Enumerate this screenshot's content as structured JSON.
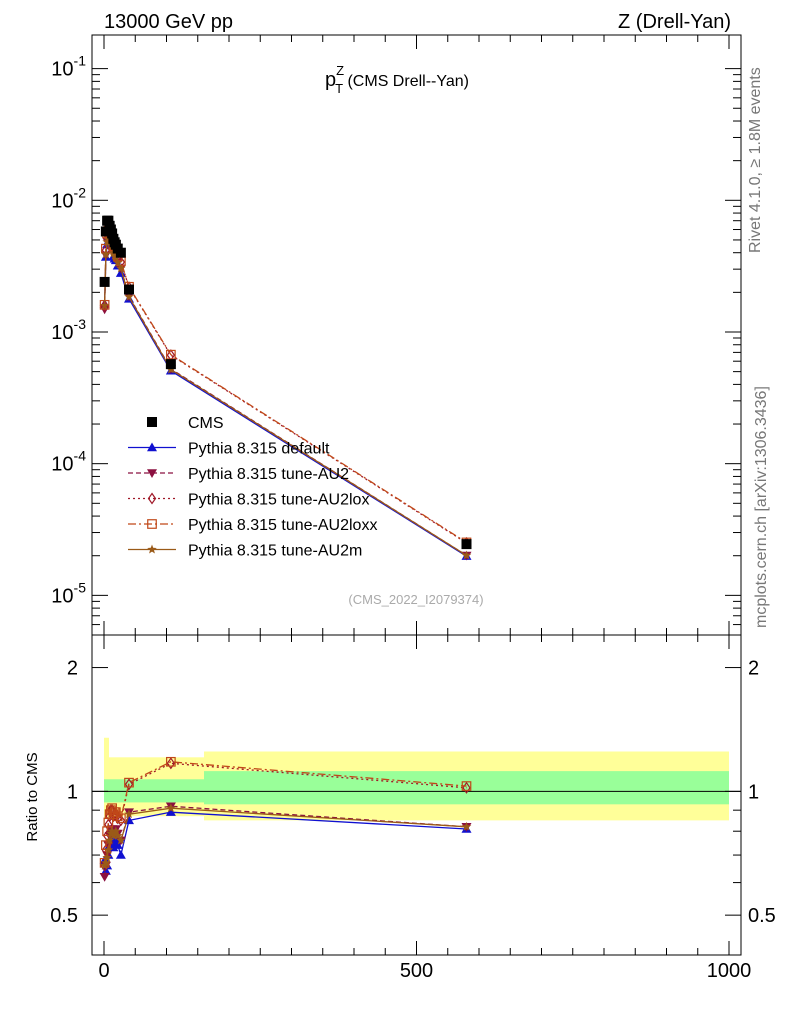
{
  "header": {
    "left": "13000 GeV pp",
    "right": "Z (Drell-Yan)"
  },
  "side_labels": {
    "rivet": "Rivet 4.1.0, ≥ 1.8M events",
    "mcplots": "mcplots.cern.ch [arXiv:1306.3436]"
  },
  "plot_title": {
    "main": "p",
    "sup": "Z",
    "sub": "T",
    "rest": " (CMS Drell--Yan)"
  },
  "analysis_id": "(CMS_2022_I2079374)",
  "colors": {
    "data": "#000000",
    "default": "#1010d0",
    "au2": "#8b1040",
    "au2lox": "#a01828",
    "au2loxx": "#c04818",
    "au2m": "#9a5a18",
    "band_inner": "#99ff99",
    "band_outer": "#ffff99"
  },
  "chart_data": {
    "type": "line",
    "x_axis": {
      "range": [
        -20,
        1000
      ],
      "ticks": [
        0,
        500,
        1000
      ],
      "tick_labels": [
        "0",
        "500",
        "1000"
      ]
    },
    "main_panel": {
      "y_scale": "log",
      "y_range": [
        5e-06,
        0.18
      ],
      "y_ticks": [
        {
          "exp": "-1",
          "value": 0.1
        },
        {
          "exp": "-2",
          "value": 0.01
        },
        {
          "exp": "-3",
          "value": 0.001
        },
        {
          "exp": "-4",
          "value": 0.0001
        },
        {
          "exp": "-5",
          "value": 1e-05
        }
      ],
      "y_tick_base": "10"
    },
    "ratio_panel": {
      "ylabel": "Ratio to CMS",
      "y_scale": "log",
      "y_range": [
        0.4,
        2.4
      ],
      "y_ticks": [
        0.5,
        1,
        2
      ],
      "y_tick_labels": [
        "0.5",
        "1",
        "2"
      ],
      "band_inner": [
        {
          "x0": 0,
          "x1": 160,
          "lo": 0.94,
          "hi": 1.07
        },
        {
          "x0": 160,
          "x1": 1000,
          "lo": 0.93,
          "hi": 1.12
        }
      ],
      "band_outer": [
        {
          "x0": 0,
          "x1": 8,
          "lo": 0.86,
          "hi": 1.35
        },
        {
          "x0": 8,
          "x1": 160,
          "lo": 0.87,
          "hi": 1.21
        },
        {
          "x0": 160,
          "x1": 1000,
          "lo": 0.85,
          "hi": 1.25
        }
      ]
    },
    "legend": [
      "CMS",
      "Pythia 8.315 default",
      "Pythia 8.315 tune-AU2",
      "Pythia 8.315 tune-AU2lox",
      "Pythia 8.315 tune-AU2loxx",
      "Pythia 8.315 tune-AU2m"
    ],
    "data_points": {
      "x": [
        1,
        3,
        5,
        7,
        9,
        11,
        13,
        15,
        17,
        19,
        22,
        27,
        40,
        107,
        580
      ],
      "y": [
        0.0024,
        0.0058,
        0.007,
        0.007,
        0.0064,
        0.006,
        0.0056,
        0.0051,
        0.0048,
        0.0046,
        0.0043,
        0.004,
        0.0021,
        0.00057,
        2.45e-05
      ]
    },
    "series": [
      {
        "name": "Pythia 8.315 default",
        "key": "default",
        "marker": "triangle-up",
        "dash": "",
        "ratio": [
          0.68,
          0.64,
          0.66,
          0.7,
          0.74,
          0.76,
          0.76,
          0.73,
          0.75,
          0.76,
          0.74,
          0.7,
          0.85,
          0.89,
          0.81
        ]
      },
      {
        "name": "Pythia 8.315 tune-AU2",
        "key": "au2",
        "marker": "triangle-down",
        "dash": "5,3",
        "ratio": [
          0.62,
          0.66,
          0.7,
          0.74,
          0.78,
          0.8,
          0.81,
          0.79,
          0.8,
          0.81,
          0.79,
          0.76,
          0.89,
          0.92,
          0.82
        ]
      },
      {
        "name": "Pythia 8.315 tune-AU2lox",
        "key": "au2lox",
        "marker": "diamond",
        "dash": "2,3",
        "ratio": [
          0.66,
          0.72,
          0.78,
          0.83,
          0.87,
          0.9,
          0.9,
          0.87,
          0.88,
          0.88,
          0.86,
          0.85,
          1.04,
          1.17,
          1.02
        ]
      },
      {
        "name": "Pythia 8.315 tune-AU2loxx",
        "key": "au2loxx",
        "marker": "square-open",
        "dash": "8,3,2,3",
        "ratio": [
          0.67,
          0.74,
          0.8,
          0.84,
          0.88,
          0.9,
          0.91,
          0.88,
          0.89,
          0.89,
          0.87,
          0.86,
          1.05,
          1.18,
          1.03
        ]
      },
      {
        "name": "Pythia 8.315 tune-AU2m",
        "key": "au2m",
        "marker": "star",
        "dash": "",
        "ratio": [
          0.66,
          0.67,
          0.69,
          0.72,
          0.76,
          0.79,
          0.8,
          0.78,
          0.79,
          0.8,
          0.78,
          0.76,
          0.88,
          0.91,
          0.82
        ]
      }
    ]
  }
}
